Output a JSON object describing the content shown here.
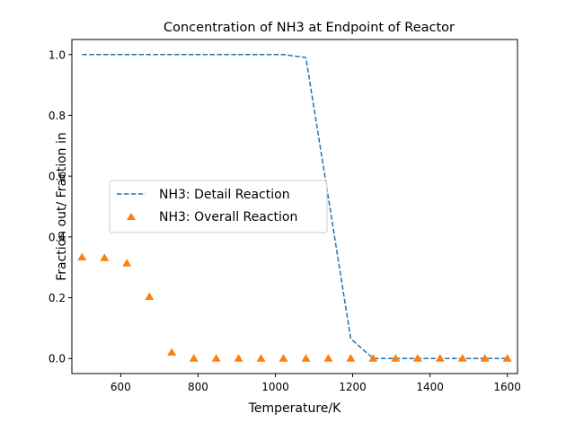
{
  "chart_data": {
    "type": "line",
    "title": "Concentration of NH3 at Endpoint of Reactor",
    "xlabel": "Temperature/K",
    "ylabel": "Fraction out/ Fraction in",
    "xlim": [
      473.65,
      1626.35
    ],
    "ylim": [
      -0.0495,
      1.0495
    ],
    "xticks": [
      600,
      800,
      1000,
      1200,
      1400,
      1600
    ],
    "xtick_labels": [
      "600",
      "800",
      "1000",
      "1200",
      "1400",
      "1600"
    ],
    "yticks": [
      0.0,
      0.2,
      0.4,
      0.6,
      0.8,
      1.0
    ],
    "ytick_labels": [
      "0.0",
      "0.2",
      "0.4",
      "0.6",
      "0.8",
      "1.0"
    ],
    "grid": false,
    "legend_position": "center-left",
    "series": [
      {
        "name": "NH3: Detail Reaction",
        "style": "dashed-line",
        "color": "#1f77b4",
        "x": [
          500,
          558,
          616,
          674,
          732,
          789,
          847,
          905,
          963,
          1021,
          1079,
          1137,
          1195,
          1253,
          1311,
          1368,
          1426,
          1484,
          1542,
          1600
        ],
        "y": [
          1.0,
          1.0,
          1.0,
          1.0,
          1.0,
          1.0,
          1.0,
          1.0,
          1.0,
          1.0,
          0.99,
          0.53,
          0.065,
          0.0,
          0.0,
          0.0,
          0.0,
          0.0,
          0.0,
          0.0
        ]
      },
      {
        "name": "NH3: Overall Reaction",
        "style": "triangle-markers",
        "color": "#ff7f0e",
        "x": [
          500,
          558,
          616,
          674,
          732,
          789,
          847,
          905,
          963,
          1021,
          1079,
          1137,
          1195,
          1253,
          1311,
          1368,
          1426,
          1484,
          1542,
          1600
        ],
        "y": [
          0.333,
          0.331,
          0.313,
          0.203,
          0.02,
          0.0,
          0.0,
          0.0,
          0.0,
          0.0,
          0.0,
          0.0,
          0.0,
          0.0,
          0.0,
          0.0,
          0.0,
          0.0,
          0.0,
          0.0
        ]
      }
    ]
  }
}
